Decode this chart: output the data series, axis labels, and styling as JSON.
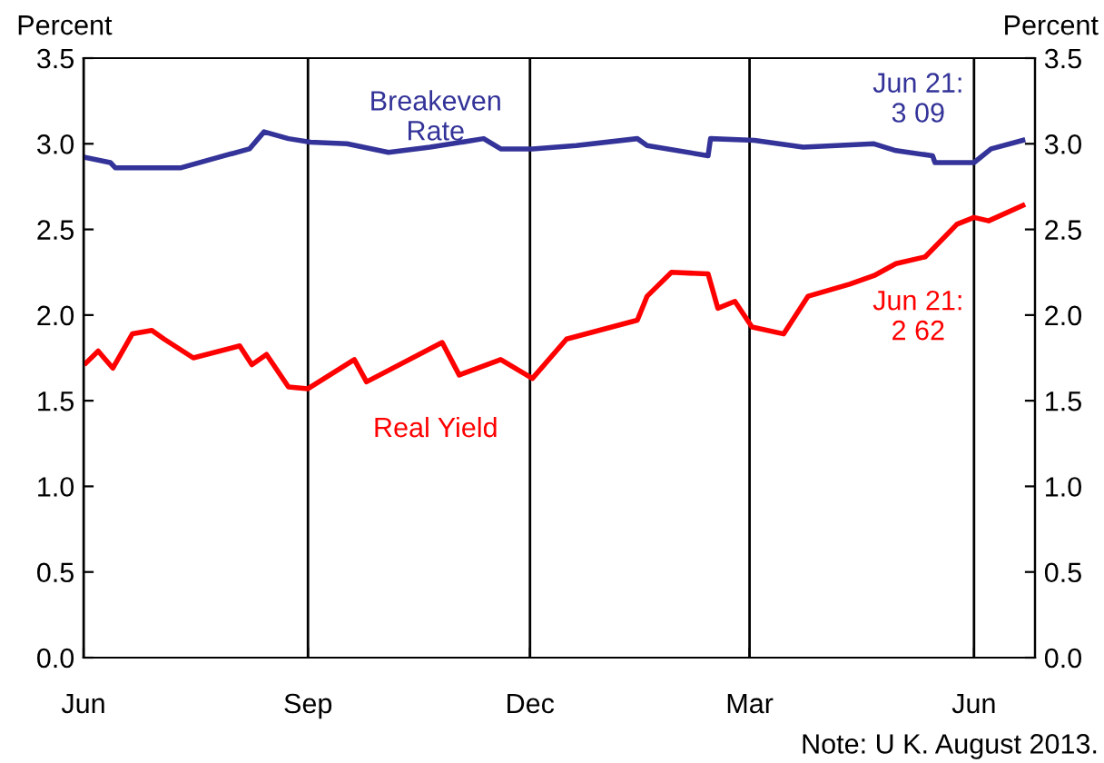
{
  "chart_data": {
    "type": "line",
    "ylabel": "Percent",
    "y2label": "Percent",
    "xlim": [
      "2012-06-01",
      "2013-06-26"
    ],
    "xticks": [
      {
        "value": "2012-06-01",
        "label": "Jun"
      },
      {
        "value": "2012-09-01",
        "label": "Sep"
      },
      {
        "value": "2012-12-01",
        "label": "Dec"
      },
      {
        "value": "2013-03-01",
        "label": "Mar"
      },
      {
        "value": "2013-06-01",
        "label": "Jun"
      }
    ],
    "ylim": [
      0,
      3.5
    ],
    "yticks": [
      {
        "value": 0,
        "label": "0.0"
      },
      {
        "value": 0.5,
        "label": "0.5"
      },
      {
        "value": 1,
        "label": "1.0"
      },
      {
        "value": 1.5,
        "label": "1.5"
      },
      {
        "value": 2,
        "label": "2.0"
      },
      {
        "value": 2.5,
        "label": "2.5"
      },
      {
        "value": 3,
        "label": "3.0"
      },
      {
        "value": 3.5,
        "label": "3.5"
      }
    ],
    "y2lim": [
      0,
      3.5
    ],
    "y2ticks": [
      {
        "value": 0,
        "label": "0.0"
      },
      {
        "value": 0.5,
        "label": "0.5"
      },
      {
        "value": 1,
        "label": "1.0"
      },
      {
        "value": 1.5,
        "label": "1.5"
      },
      {
        "value": 2,
        "label": "2.0"
      },
      {
        "value": 2.5,
        "label": "2.5"
      },
      {
        "value": 3,
        "label": "3.0"
      },
      {
        "value": 3.5,
        "label": "3.5"
      }
    ],
    "grid": "x",
    "legend": false,
    "line_style": "solid",
    "marker": "none",
    "series": [
      {
        "name": "Breakeven\nRate",
        "color": "#333399",
        "x": [
          "2012-06-02",
          "2012-06-12",
          "2012-06-14",
          "2012-07-11",
          "2012-07-26",
          "2012-08-08",
          "2012-08-14",
          "2012-08-24",
          "2012-09-02",
          "2012-09-17",
          "2012-10-04",
          "2012-10-21",
          "2012-11-12",
          "2012-11-19",
          "2012-12-02",
          "2012-12-20",
          "2013-01-14",
          "2013-01-18",
          "2013-02-12",
          "2013-02-13",
          "2013-03-03",
          "2013-03-23",
          "2013-04-21",
          "2013-04-30",
          "2013-05-15",
          "2013-05-16",
          "2013-06-01",
          "2013-06-08",
          "2013-06-21"
        ],
        "values": [
          2.92,
          2.89,
          2.86,
          2.86,
          2.92,
          2.97,
          3.07,
          3.03,
          3.01,
          3.0,
          2.95,
          2.98,
          3.03,
          2.97,
          2.97,
          2.99,
          3.03,
          2.99,
          2.93,
          3.03,
          3.02,
          2.98,
          3.0,
          2.96,
          2.93,
          2.89,
          2.89,
          2.97,
          3.02
        ]
      },
      {
        "name": "Real Yield",
        "color": "#ff0000",
        "x": [
          "2012-06-02",
          "2012-06-07",
          "2012-06-13",
          "2012-06-21",
          "2012-06-29",
          "2012-07-04",
          "2012-07-16",
          "2012-08-04",
          "2012-08-09",
          "2012-08-15",
          "2012-08-24",
          "2012-09-01",
          "2012-09-20",
          "2012-09-25",
          "2012-10-26",
          "2012-11-02",
          "2012-11-19",
          "2012-12-02",
          "2012-12-16",
          "2013-01-14",
          "2013-01-18",
          "2013-01-28",
          "2013-02-12",
          "2013-02-16",
          "2013-02-23",
          "2013-03-02",
          "2013-03-15",
          "2013-03-25",
          "2013-04-11",
          "2013-04-21",
          "2013-04-30",
          "2013-05-12",
          "2013-05-25",
          "2013-06-01",
          "2013-06-07",
          "2013-06-21"
        ],
        "values": [
          1.72,
          1.79,
          1.69,
          1.89,
          1.91,
          1.86,
          1.75,
          1.82,
          1.71,
          1.77,
          1.58,
          1.57,
          1.74,
          1.61,
          1.84,
          1.65,
          1.74,
          1.63,
          1.86,
          1.97,
          2.11,
          2.25,
          2.24,
          2.04,
          2.08,
          1.93,
          1.89,
          2.11,
          2.18,
          2.23,
          2.3,
          2.34,
          2.53,
          2.57,
          2.55,
          2.64
        ]
      }
    ],
    "annotations": [
      "Jun 21:\n3 09",
      "Jun 21:\n2 62",
      "Note: U K. August 2013."
    ]
  }
}
